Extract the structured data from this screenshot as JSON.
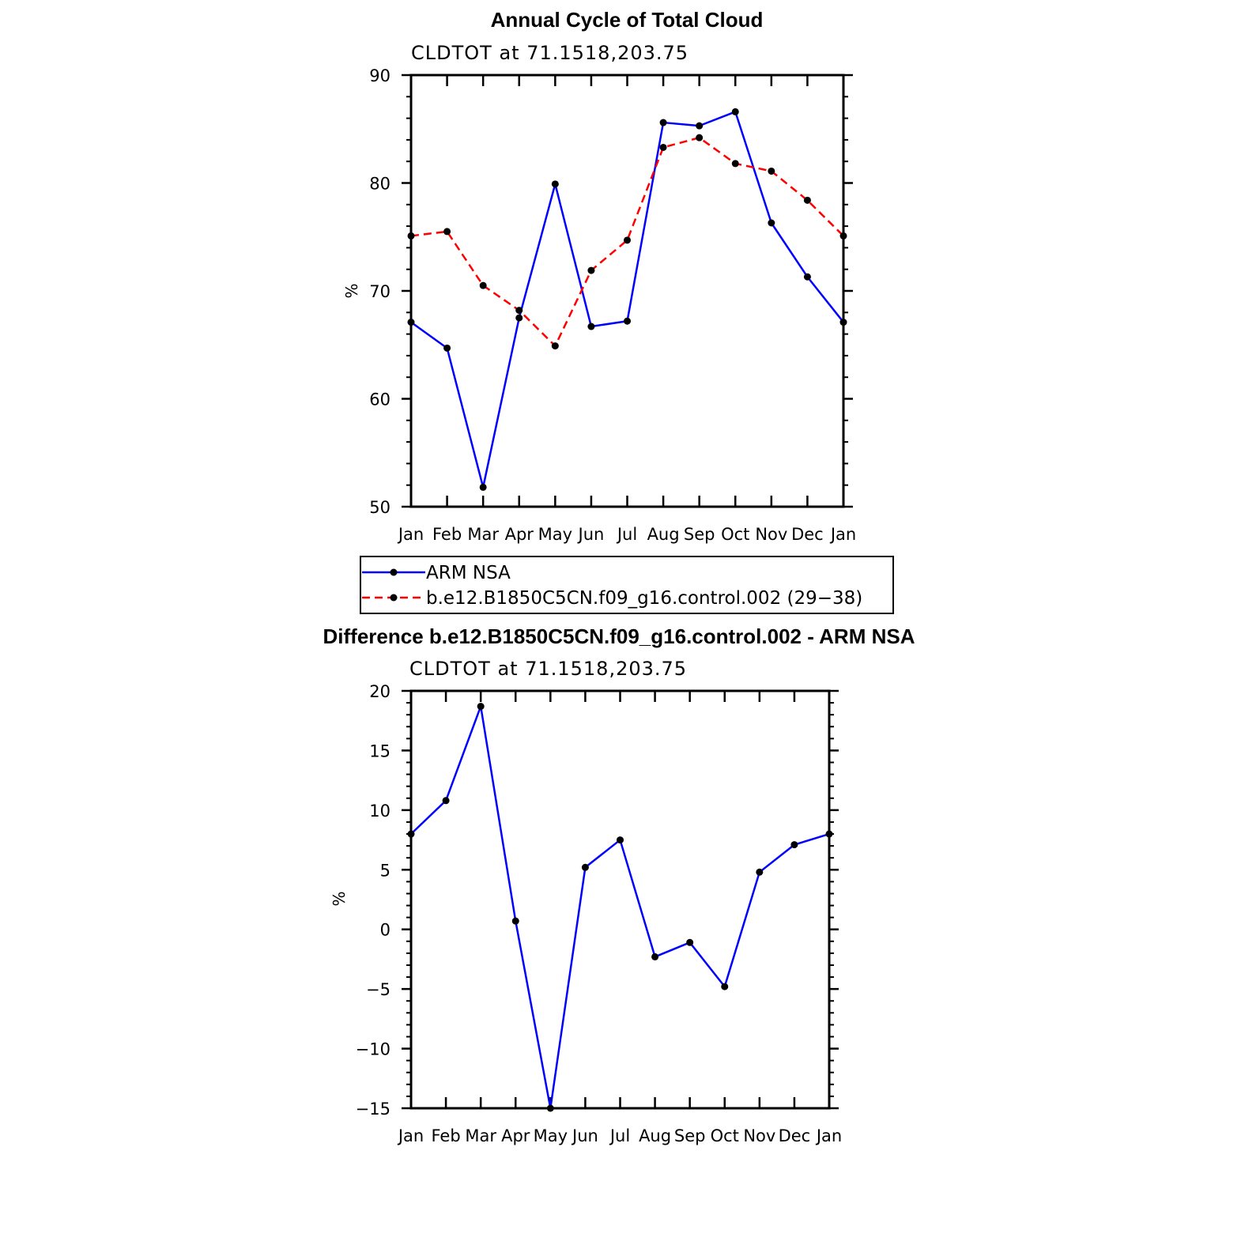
{
  "chart_data": [
    {
      "type": "line",
      "title": "Annual Cycle of Total Cloud",
      "subtitle": "CLDTOT at 71.1518,203.75",
      "xlabel": "",
      "ylabel": "%",
      "categories": [
        "Jan",
        "Feb",
        "Mar",
        "Apr",
        "May",
        "Jun",
        "Jul",
        "Aug",
        "Sep",
        "Oct",
        "Nov",
        "Dec",
        "Jan"
      ],
      "ylim": [
        50,
        90
      ],
      "yticks": [
        "50",
        "60",
        "70",
        "80",
        "90"
      ],
      "series": [
        {
          "name": "ARM NSA",
          "color": "#0000ff",
          "dash": "solid",
          "values": [
            67.1,
            64.7,
            51.8,
            67.5,
            79.9,
            66.7,
            67.2,
            85.6,
            85.3,
            86.6,
            76.3,
            71.3,
            67.1
          ]
        },
        {
          "name": "b.e12.B1850C5CN.f09_g16.control.002 (29−38)",
          "color": "#ff0000",
          "dash": "dashed",
          "values": [
            75.1,
            75.5,
            70.5,
            68.2,
            64.9,
            71.9,
            74.7,
            83.3,
            84.2,
            81.8,
            81.1,
            78.4,
            75.1
          ]
        }
      ],
      "legend": "below"
    },
    {
      "type": "line",
      "title": "Difference b.e12.B1850C5CN.f09_g16.control.002 - ARM NSA",
      "subtitle": "CLDTOT at 71.1518,203.75",
      "xlabel": "",
      "ylabel": "%",
      "categories": [
        "Jan",
        "Feb",
        "Mar",
        "Apr",
        "May",
        "Jun",
        "Jul",
        "Aug",
        "Sep",
        "Oct",
        "Nov",
        "Dec",
        "Jan"
      ],
      "ylim": [
        -15,
        20
      ],
      "yticks": [
        "−15",
        "−10",
        "−5",
        "0",
        "5",
        "10",
        "15",
        "20"
      ],
      "series": [
        {
          "name": "Difference",
          "color": "#0000ff",
          "dash": "solid",
          "values": [
            8.0,
            10.8,
            18.7,
            0.7,
            -15.0,
            5.2,
            7.5,
            -2.3,
            -1.1,
            -4.8,
            4.8,
            7.1,
            8.0
          ]
        }
      ]
    }
  ]
}
